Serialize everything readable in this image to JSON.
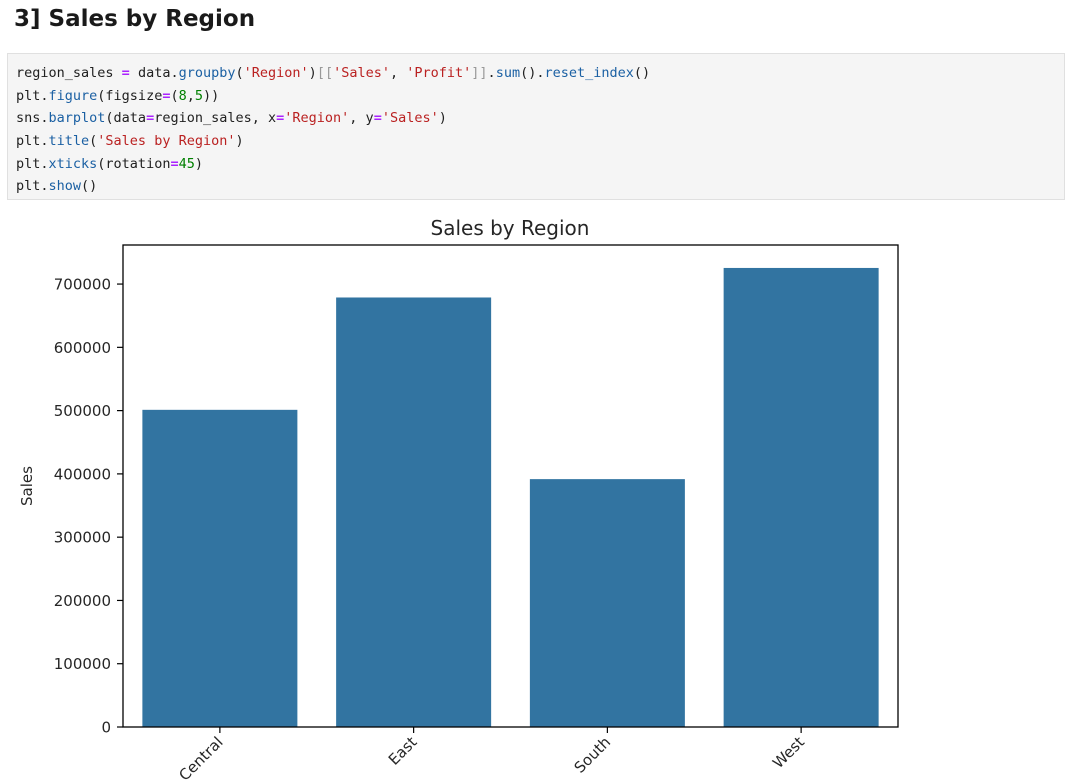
{
  "notebook": {
    "heading": "3] Sales by Region",
    "code_lines": [
      [
        {
          "t": "region_sales ",
          "c": "c-pl"
        },
        {
          "t": "=",
          "c": "c-op"
        },
        {
          "t": " data.",
          "c": "c-pl"
        },
        {
          "t": "groupby",
          "c": "c-fn"
        },
        {
          "t": "(",
          "c": "c-br"
        },
        {
          "t": "'Region'",
          "c": "c-st"
        },
        {
          "t": ")",
          "c": "c-br"
        },
        {
          "t": "[[",
          "c": "c-bk"
        },
        {
          "t": "'Sales'",
          "c": "c-st"
        },
        {
          "t": ", ",
          "c": "c-pl"
        },
        {
          "t": "'Profit'",
          "c": "c-st"
        },
        {
          "t": "]]",
          "c": "c-bk"
        },
        {
          "t": ".",
          "c": "c-pl"
        },
        {
          "t": "sum",
          "c": "c-fn"
        },
        {
          "t": "().",
          "c": "c-br"
        },
        {
          "t": "reset_index",
          "c": "c-fn"
        },
        {
          "t": "()",
          "c": "c-br"
        }
      ],
      [
        {
          "t": "plt.",
          "c": "c-pl"
        },
        {
          "t": "figure",
          "c": "c-fn"
        },
        {
          "t": "(figsize",
          "c": "c-pl"
        },
        {
          "t": "=",
          "c": "c-op"
        },
        {
          "t": "(",
          "c": "c-br"
        },
        {
          "t": "8",
          "c": "c-nu"
        },
        {
          "t": ",",
          "c": "c-pl"
        },
        {
          "t": "5",
          "c": "c-nu"
        },
        {
          "t": "))",
          "c": "c-br"
        }
      ],
      [
        {
          "t": "sns.",
          "c": "c-pl"
        },
        {
          "t": "barplot",
          "c": "c-fn"
        },
        {
          "t": "(data",
          "c": "c-pl"
        },
        {
          "t": "=",
          "c": "c-op"
        },
        {
          "t": "region_sales, x",
          "c": "c-pl"
        },
        {
          "t": "=",
          "c": "c-op"
        },
        {
          "t": "'Region'",
          "c": "c-st"
        },
        {
          "t": ", y",
          "c": "c-pl"
        },
        {
          "t": "=",
          "c": "c-op"
        },
        {
          "t": "'Sales'",
          "c": "c-st"
        },
        {
          "t": ")",
          "c": "c-br"
        }
      ],
      [
        {
          "t": "plt.",
          "c": "c-pl"
        },
        {
          "t": "title",
          "c": "c-fn"
        },
        {
          "t": "(",
          "c": "c-br"
        },
        {
          "t": "'Sales by Region'",
          "c": "c-st"
        },
        {
          "t": ")",
          "c": "c-br"
        }
      ],
      [
        {
          "t": "plt.",
          "c": "c-pl"
        },
        {
          "t": "xticks",
          "c": "c-fn"
        },
        {
          "t": "(rotation",
          "c": "c-pl"
        },
        {
          "t": "=",
          "c": "c-op"
        },
        {
          "t": "45",
          "c": "c-nu"
        },
        {
          "t": ")",
          "c": "c-br"
        }
      ],
      [
        {
          "t": "plt.",
          "c": "c-pl"
        },
        {
          "t": "show",
          "c": "c-fn"
        },
        {
          "t": "()",
          "c": "c-br"
        }
      ]
    ]
  },
  "chart_data": {
    "type": "bar",
    "title": "Sales by Region",
    "xlabel": "",
    "ylabel": "Sales",
    "categories": [
      "Central",
      "East",
      "South",
      "West"
    ],
    "values": [
      501240,
      678781,
      391722,
      725458
    ],
    "ylim": [
      0,
      761730
    ],
    "yticks": [
      0,
      100000,
      200000,
      300000,
      400000,
      500000,
      600000,
      700000
    ],
    "xtick_rotation": 45,
    "bar_color": "#3274a1",
    "grid": false,
    "legend": "none"
  }
}
